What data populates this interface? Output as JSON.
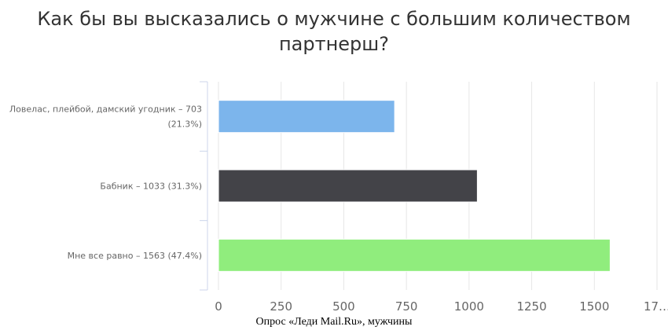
{
  "chart_data": {
    "type": "bar",
    "orientation": "horizontal",
    "title_lines": [
      "Как бы вы высказались о мужчине с большим количеством",
      "партнерш?"
    ],
    "categories": [
      [
        "Ловелас, плейбой, дамский угодник – 703",
        "(21.3%)"
      ],
      [
        "Бабник – 1033 (31.3%)"
      ],
      [
        "Мне все равно – 1563 (47.4%)"
      ]
    ],
    "values": [
      703,
      1033,
      1563
    ],
    "percentages": [
      21.3,
      31.3,
      47.4
    ],
    "colors": [
      "#7cb5ec",
      "#434348",
      "#90ed7d"
    ],
    "x_ticks": [
      "0",
      "250",
      "500",
      "750",
      "1000",
      "1250",
      "1500",
      "17…"
    ],
    "x_tick_values": [
      0,
      250,
      500,
      750,
      1000,
      1250,
      1500,
      1750
    ],
    "xlim": [
      0,
      1750
    ],
    "grid": true
  },
  "caption": "Опрос «Леди Mail.Ru», мужчины"
}
